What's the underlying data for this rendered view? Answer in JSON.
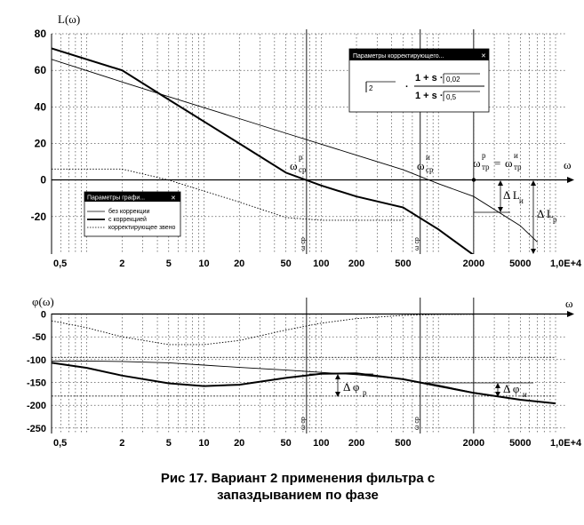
{
  "chart_data": [
    {
      "type": "line",
      "ylabel": "L(ω)",
      "xlabel": "ω",
      "xscale": "log",
      "xlim": [
        0.5,
        10000
      ],
      "ylim": [
        -40,
        80
      ],
      "xticks": [
        0.5,
        2,
        5,
        10,
        20,
        50,
        100,
        200,
        500,
        2000,
        5000,
        10000
      ],
      "xtick_labels": [
        "0,5",
        "2",
        "5",
        "10",
        "20",
        "50",
        "100",
        "200",
        "500",
        "2000",
        "5000",
        "1,0E+4"
      ],
      "yticks": [
        80,
        60,
        40,
        20,
        0,
        -20
      ],
      "ytick_labels": [
        "80",
        "60",
        "40",
        "20",
        "0",
        "-20"
      ],
      "series": [
        {
          "name": "без коррекции",
          "style": "thin",
          "x": [
            0.5,
            2,
            5,
            10,
            20,
            50,
            100,
            200,
            500,
            1000,
            2000,
            5000,
            7000
          ],
          "y": [
            66,
            53.6,
            45.6,
            39.6,
            33.6,
            25.6,
            19.6,
            13.6,
            5.6,
            -2,
            -9,
            -25,
            -34
          ]
        },
        {
          "name": "с коррекцией",
          "style": "thick",
          "x": [
            0.5,
            2,
            5,
            10,
            20,
            50,
            100,
            200,
            500,
            1000,
            2000
          ],
          "y": [
            72,
            60,
            44,
            32,
            20,
            4,
            -3,
            -9,
            -15,
            -27,
            -41
          ]
        },
        {
          "name": "корректирующее звено",
          "style": "dotted",
          "x": [
            0.5,
            2,
            5,
            10,
            20,
            50,
            100,
            200,
            500
          ],
          "y": [
            6,
            6,
            0,
            -6,
            -12,
            -20.5,
            -22,
            -22,
            -22
          ]
        }
      ],
      "vlines_x": [
        75,
        700,
        2000
      ],
      "vline_labels": [
        "ω ср",
        "ω ср"
      ],
      "annotations": {
        "wcp_p": "ω",
        "wcp_p_sup": "р",
        "wcp_p_sub": "ср",
        "wcp_u": "ω",
        "wcp_u_sup": "и",
        "wcp_u_sub": "ср",
        "wtp_eq": "ω",
        "wtp_eq_sup": "р",
        "wtp_eq_sub": "тр",
        "eq_sign": "=",
        "wtp_eq2": "ω",
        "wtp_eq2_sup": "и",
        "wtp_eq2_sub": "тр",
        "dL_u": "Δ L",
        "dL_u_sub": "и",
        "dL_p": "Δ L",
        "dL_p_sub": "р"
      },
      "legend": {
        "title": "Параметры графи...",
        "close": "✕",
        "placement": "bottom-left",
        "items": [
          "без коррекции",
          "с коррекцией",
          "корректирующее звено"
        ]
      },
      "params_box": {
        "title": "Параметры корректирующего...",
        "dots": "...",
        "close": "✕",
        "numerator_prefix": "1 + s ·",
        "numerator_value": "0,02",
        "denominator_prefix": "1 + s ·",
        "denominator_value": "0,5",
        "gain_value": "2",
        "dot": "·"
      }
    },
    {
      "type": "line",
      "ylabel": "φ(ω)",
      "xlabel": "ω",
      "xscale": "log",
      "xlim": [
        0.5,
        10000
      ],
      "ylim": [
        -260,
        0
      ],
      "xticks": [
        0.5,
        2,
        5,
        10,
        20,
        50,
        100,
        200,
        500,
        2000,
        5000,
        10000
      ],
      "xtick_labels": [
        "0,5",
        "2",
        "5",
        "10",
        "20",
        "50",
        "100",
        "200",
        "500",
        "2000",
        "5000",
        "1,0E+4"
      ],
      "yticks": [
        0,
        -50,
        -100,
        -150,
        -200,
        -250
      ],
      "ytick_labels": [
        "0",
        "-50",
        "-100",
        "-150",
        "-200",
        "-250"
      ],
      "series": [
        {
          "name": "без коррекции",
          "style": "thin",
          "x": [
            0.5,
            1,
            2,
            5,
            10,
            20,
            50,
            100,
            200,
            500,
            1000,
            2000,
            5000,
            10000
          ],
          "y": [
            -103,
            -103,
            -104,
            -107,
            -112,
            -117,
            -123,
            -128,
            -133,
            -143,
            -156,
            -172,
            -188,
            -196
          ]
        },
        {
          "name": "с коррекцией",
          "style": "thick",
          "x": [
            0.5,
            1,
            2,
            5,
            10,
            20,
            50,
            100,
            200,
            500,
            1000,
            2000,
            5000,
            10000
          ],
          "y": [
            -107,
            -118,
            -135,
            -152,
            -158,
            -155,
            -140,
            -131,
            -130,
            -143,
            -158,
            -173,
            -188,
            -196
          ]
        },
        {
          "name": "корректирующее звено",
          "style": "dotted",
          "x": [
            0.5,
            1,
            2,
            5,
            10,
            20,
            50,
            100,
            200,
            500,
            1000,
            2000
          ],
          "y": [
            -15,
            -30,
            -50,
            -67,
            -67,
            -58,
            -35,
            -20,
            -10,
            -3,
            -1,
            -0.5
          ]
        }
      ],
      "hlines_y": [
        -95,
        -180
      ],
      "vlines_x": [
        75,
        700,
        2000
      ],
      "vline_labels": [
        "ω ср",
        "ω ср"
      ],
      "annotations": {
        "dphi_p": "Δ φ",
        "dphi_p_sub": "р",
        "dphi_u": "Δ φ",
        "dphi_u_sub": "и"
      }
    }
  ],
  "caption": {
    "line1": "Рис 17. Вариант 2 применения фильтра с",
    "line2": "запаздыванием по фазе"
  }
}
